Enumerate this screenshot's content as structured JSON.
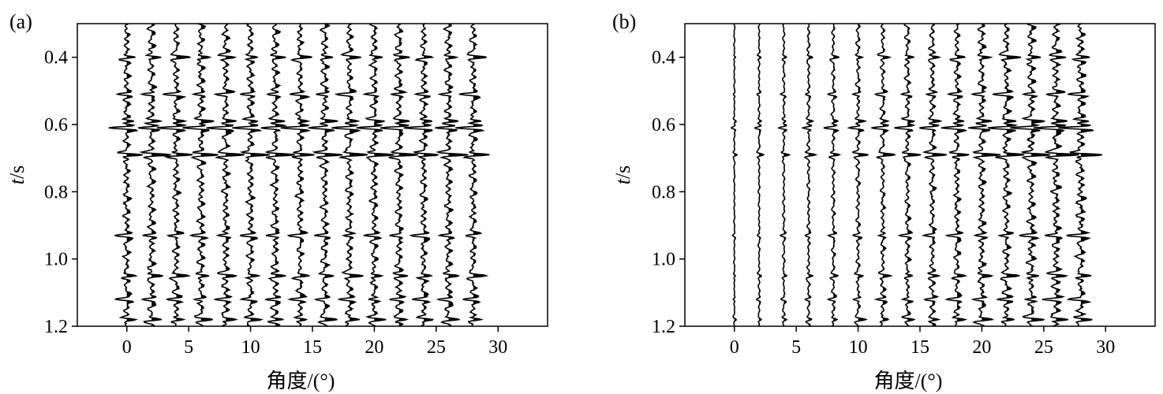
{
  "chart_data": [
    {
      "panel_label": "(a)",
      "type": "line",
      "subtype": "seismic-wiggle-gather",
      "xlabel": "角度/(°)",
      "ylabel": "t/s",
      "ylabel_italic_part": "t",
      "ylabel_rest": "/s",
      "xlim": [
        -4,
        34
      ],
      "ylim": [
        0.3,
        1.2
      ],
      "y_inverted": true,
      "xticks": [
        0,
        5,
        10,
        15,
        20,
        25,
        30
      ],
      "yticks": [
        0.4,
        0.6,
        0.8,
        1.0,
        1.2
      ],
      "ytick_labels": [
        "0.4",
        "0.6",
        "0.8",
        "1.0",
        "1.2"
      ],
      "trace_positions": [
        0,
        2,
        4,
        6,
        8,
        10,
        12,
        14,
        16,
        18,
        20,
        22,
        24,
        26,
        28
      ],
      "strong_events_t": [
        0.4,
        0.51,
        0.59,
        0.61,
        0.69,
        0.93,
        1.05,
        1.12,
        1.18
      ],
      "amplitude_trend": "uniform",
      "grid": false
    },
    {
      "panel_label": "(b)",
      "type": "line",
      "subtype": "seismic-wiggle-gather",
      "xlabel": "角度/(°)",
      "ylabel": "t/s",
      "ylabel_italic_part": "t",
      "ylabel_rest": "/s",
      "xlim": [
        -4,
        34
      ],
      "ylim": [
        0.3,
        1.2
      ],
      "y_inverted": true,
      "xticks": [
        0,
        5,
        10,
        15,
        20,
        25,
        30
      ],
      "yticks": [
        0.4,
        0.6,
        0.8,
        1.0,
        1.2
      ],
      "ytick_labels": [
        "0.4",
        "0.6",
        "0.8",
        "1.0",
        "1.2"
      ],
      "trace_positions": [
        0,
        2,
        4,
        6,
        8,
        10,
        12,
        14,
        16,
        18,
        20,
        22,
        24,
        26,
        28
      ],
      "strong_events_t": [
        0.4,
        0.51,
        0.59,
        0.61,
        0.69,
        0.93,
        1.05,
        1.12,
        1.18
      ],
      "amplitude_trend": "increasing-with-angle",
      "grid": false
    }
  ],
  "colors": {
    "trace": "#000000",
    "background": "#ffffff",
    "frame": "#000000"
  }
}
